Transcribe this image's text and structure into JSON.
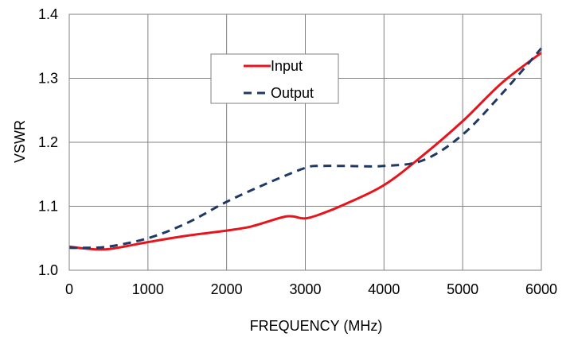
{
  "chart_data": {
    "type": "line",
    "xlabel": "FREQUENCY (MHz)",
    "ylabel": "VSWR",
    "xlim": [
      0,
      6000
    ],
    "ylim": [
      1.0,
      1.4
    ],
    "x_ticks": [
      0,
      1000,
      2000,
      3000,
      4000,
      5000,
      6000
    ],
    "x_tick_labels": [
      "0",
      "1000",
      "2000",
      "3000",
      "4000",
      "5000",
      "6000"
    ],
    "y_ticks": [
      1.0,
      1.1,
      1.2,
      1.3,
      1.4
    ],
    "y_tick_labels": [
      "1.0",
      "1.1",
      "1.2",
      "1.3",
      "1.4"
    ],
    "grid": true,
    "legend_position": "top-center",
    "series": [
      {
        "name": "Input",
        "color": "#e8141c",
        "style": "solid",
        "x": [
          0,
          200,
          500,
          1000,
          1500,
          2000,
          2300,
          2600,
          2750,
          2850,
          3000,
          3200,
          3500,
          4000,
          4500,
          5000,
          5500,
          6000
        ],
        "y": [
          1.037,
          1.034,
          1.033,
          1.044,
          1.054,
          1.062,
          1.068,
          1.079,
          1.084,
          1.084,
          1.081,
          1.088,
          1.103,
          1.133,
          1.18,
          1.233,
          1.293,
          1.34
        ]
      },
      {
        "name": "Output",
        "color": "#1f3864",
        "style": "dashed",
        "x": [
          0,
          200,
          500,
          1000,
          1500,
          2000,
          2500,
          3000,
          3200,
          3500,
          4000,
          4500,
          5000,
          5500,
          6000
        ],
        "y": [
          1.035,
          1.035,
          1.037,
          1.05,
          1.074,
          1.107,
          1.135,
          1.16,
          1.163,
          1.163,
          1.163,
          1.172,
          1.212,
          1.276,
          1.347
        ]
      }
    ]
  }
}
